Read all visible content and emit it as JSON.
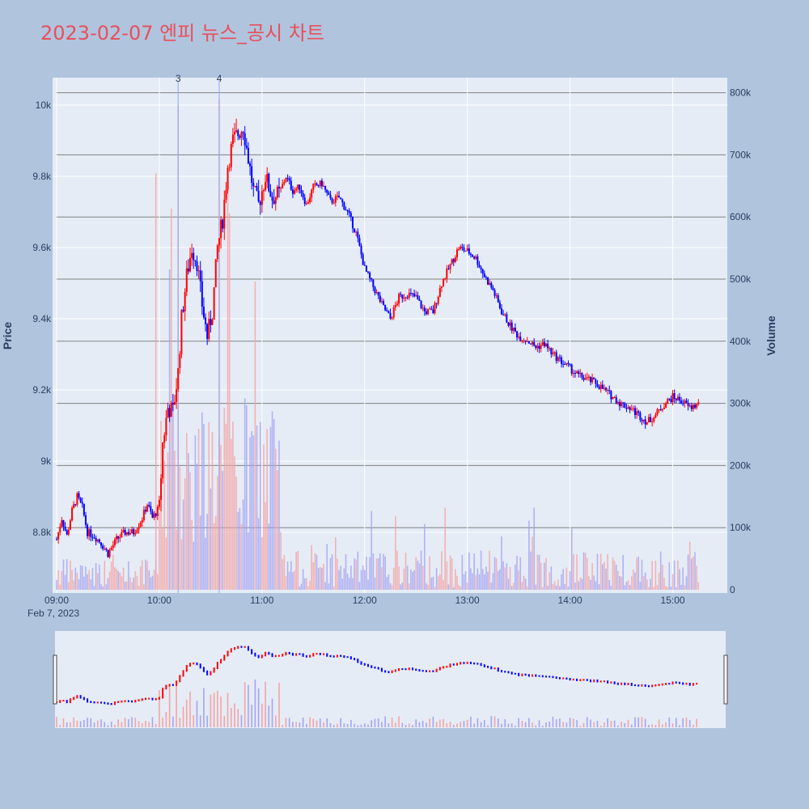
{
  "chart_data": {
    "type": "candlestick",
    "title": "2023-02-07 엔피 뉴스_공시 차트",
    "ylabel": "Price",
    "y2label": "Volume",
    "date_label": "Feb 7, 2023",
    "x_range": [
      "09:00",
      "15:30"
    ],
    "ylim": [
      8640,
      10080
    ],
    "y2lim": [
      0,
      820000
    ],
    "x_ticks": [
      "09:00",
      "10:00",
      "11:00",
      "12:00",
      "13:00",
      "14:00",
      "15:00"
    ],
    "y_ticks": [
      {
        "v": 8800,
        "label": "8.8k"
      },
      {
        "v": 9000,
        "label": "9k"
      },
      {
        "v": 9200,
        "label": "9.2k"
      },
      {
        "v": 9400,
        "label": "9.4k"
      },
      {
        "v": 9600,
        "label": "9.6k"
      },
      {
        "v": 9800,
        "label": "9.8k"
      },
      {
        "v": 10000,
        "label": "10k"
      }
    ],
    "y2_ticks": [
      {
        "v": 0,
        "label": "0"
      },
      {
        "v": 100000,
        "label": "100k"
      },
      {
        "v": 200000,
        "label": "200k"
      },
      {
        "v": 300000,
        "label": "300k"
      },
      {
        "v": 400000,
        "label": "400k"
      },
      {
        "v": 500000,
        "label": "500k"
      },
      {
        "v": 600000,
        "label": "600k"
      },
      {
        "v": 700000,
        "label": "700k"
      },
      {
        "v": 800000,
        "label": "800k"
      }
    ],
    "event_markers": [
      {
        "time": "10:11",
        "label": "3"
      },
      {
        "time": "10:35",
        "label": "4"
      }
    ],
    "colors": {
      "up": "#ff0000",
      "down": "#0000ff",
      "background": "#e5ecf6",
      "page": "#b0c4de",
      "title": "#e8505b"
    },
    "price_path": [
      [
        "09:00",
        8780
      ],
      [
        "09:03",
        8840
      ],
      [
        "09:06",
        8790
      ],
      [
        "09:09",
        8860
      ],
      [
        "09:12",
        8900
      ],
      [
        "09:15",
        8870
      ],
      [
        "09:18",
        8800
      ],
      [
        "09:22",
        8790
      ],
      [
        "09:26",
        8770
      ],
      [
        "09:30",
        8740
      ],
      [
        "09:35",
        8780
      ],
      [
        "09:40",
        8800
      ],
      [
        "09:45",
        8800
      ],
      [
        "09:50",
        8840
      ],
      [
        "09:53",
        8880
      ],
      [
        "09:56",
        8840
      ],
      [
        "10:00",
        8870
      ],
      [
        "10:02",
        9050
      ],
      [
        "10:05",
        9150
      ],
      [
        "10:08",
        9140
      ],
      [
        "10:11",
        9250
      ],
      [
        "10:13",
        9400
      ],
      [
        "10:16",
        9520
      ],
      [
        "10:19",
        9600
      ],
      [
        "10:22",
        9560
      ],
      [
        "10:25",
        9440
      ],
      [
        "10:28",
        9350
      ],
      [
        "10:31",
        9420
      ],
      [
        "10:34",
        9600
      ],
      [
        "10:37",
        9680
      ],
      [
        "10:40",
        9830
      ],
      [
        "10:43",
        9900
      ],
      [
        "10:46",
        9920
      ],
      [
        "10:49",
        9940
      ],
      [
        "10:52",
        9850
      ],
      [
        "10:55",
        9760
      ],
      [
        "10:58",
        9720
      ],
      [
        "11:02",
        9800
      ],
      [
        "11:06",
        9740
      ],
      [
        "11:10",
        9750
      ],
      [
        "11:14",
        9800
      ],
      [
        "11:18",
        9760
      ],
      [
        "11:22",
        9770
      ],
      [
        "11:26",
        9720
      ],
      [
        "11:30",
        9770
      ],
      [
        "11:35",
        9780
      ],
      [
        "11:40",
        9730
      ],
      [
        "11:45",
        9740
      ],
      [
        "11:50",
        9700
      ],
      [
        "11:55",
        9640
      ],
      [
        "12:00",
        9540
      ],
      [
        "12:05",
        9490
      ],
      [
        "12:10",
        9440
      ],
      [
        "12:15",
        9400
      ],
      [
        "12:20",
        9460
      ],
      [
        "12:25",
        9470
      ],
      [
        "12:30",
        9460
      ],
      [
        "12:35",
        9420
      ],
      [
        "12:40",
        9420
      ],
      [
        "12:45",
        9500
      ],
      [
        "12:50",
        9550
      ],
      [
        "12:55",
        9600
      ],
      [
        "13:00",
        9590
      ],
      [
        "13:05",
        9570
      ],
      [
        "13:10",
        9520
      ],
      [
        "13:15",
        9480
      ],
      [
        "13:20",
        9420
      ],
      [
        "13:25",
        9380
      ],
      [
        "13:30",
        9350
      ],
      [
        "13:35",
        9340
      ],
      [
        "13:40",
        9320
      ],
      [
        "13:45",
        9330
      ],
      [
        "13:50",
        9300
      ],
      [
        "13:55",
        9280
      ],
      [
        "14:00",
        9260
      ],
      [
        "14:05",
        9240
      ],
      [
        "14:10",
        9230
      ],
      [
        "14:15",
        9220
      ],
      [
        "14:20",
        9200
      ],
      [
        "14:25",
        9180
      ],
      [
        "14:30",
        9160
      ],
      [
        "14:35",
        9150
      ],
      [
        "14:40",
        9130
      ],
      [
        "14:45",
        9110
      ],
      [
        "14:50",
        9130
      ],
      [
        "14:55",
        9160
      ],
      [
        "15:00",
        9180
      ],
      [
        "15:05",
        9170
      ],
      [
        "15:10",
        9150
      ],
      [
        "15:15",
        9160
      ]
    ]
  }
}
